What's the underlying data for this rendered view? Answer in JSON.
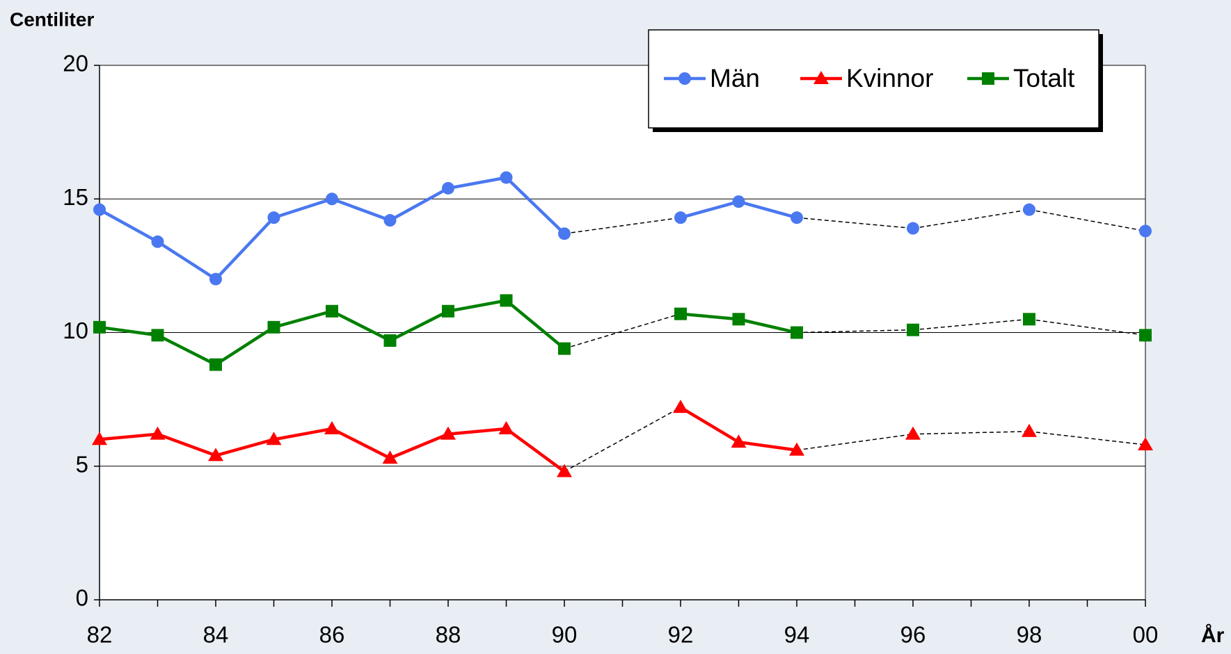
{
  "chart_data": {
    "type": "line",
    "y_label": "Centiliter",
    "x_label": "År",
    "categories": [
      "82",
      null,
      "84",
      null,
      "86",
      null,
      "88",
      null,
      "90",
      null,
      "92",
      null,
      "94",
      null,
      "96",
      null,
      "98",
      null,
      "00"
    ],
    "series": [
      {
        "name": "Män",
        "color": "#4a78f0",
        "marker": "circle",
        "values": [
          14.6,
          13.4,
          12.0,
          14.3,
          15.0,
          14.2,
          15.4,
          15.8,
          13.7,
          null,
          14.3,
          14.9,
          14.3,
          null,
          13.9,
          null,
          14.6,
          null,
          13.8
        ]
      },
      {
        "name": "Kvinnor",
        "color": "#ff0000",
        "marker": "triangle",
        "values": [
          6.0,
          6.2,
          5.4,
          6.0,
          6.4,
          5.3,
          6.2,
          6.4,
          4.8,
          null,
          7.2,
          5.9,
          5.6,
          null,
          6.2,
          null,
          6.3,
          null,
          5.8
        ]
      },
      {
        "name": "Totalt",
        "color": "#008000",
        "marker": "square",
        "values": [
          10.2,
          9.9,
          8.8,
          10.2,
          10.8,
          9.7,
          10.8,
          11.2,
          9.4,
          null,
          10.7,
          10.5,
          10.0,
          null,
          10.1,
          null,
          10.5,
          null,
          9.9
        ]
      }
    ],
    "ylim": [
      0,
      20
    ],
    "yticks": [
      0,
      5,
      10,
      15,
      20
    ],
    "grid": true,
    "legend": "top-right"
  }
}
